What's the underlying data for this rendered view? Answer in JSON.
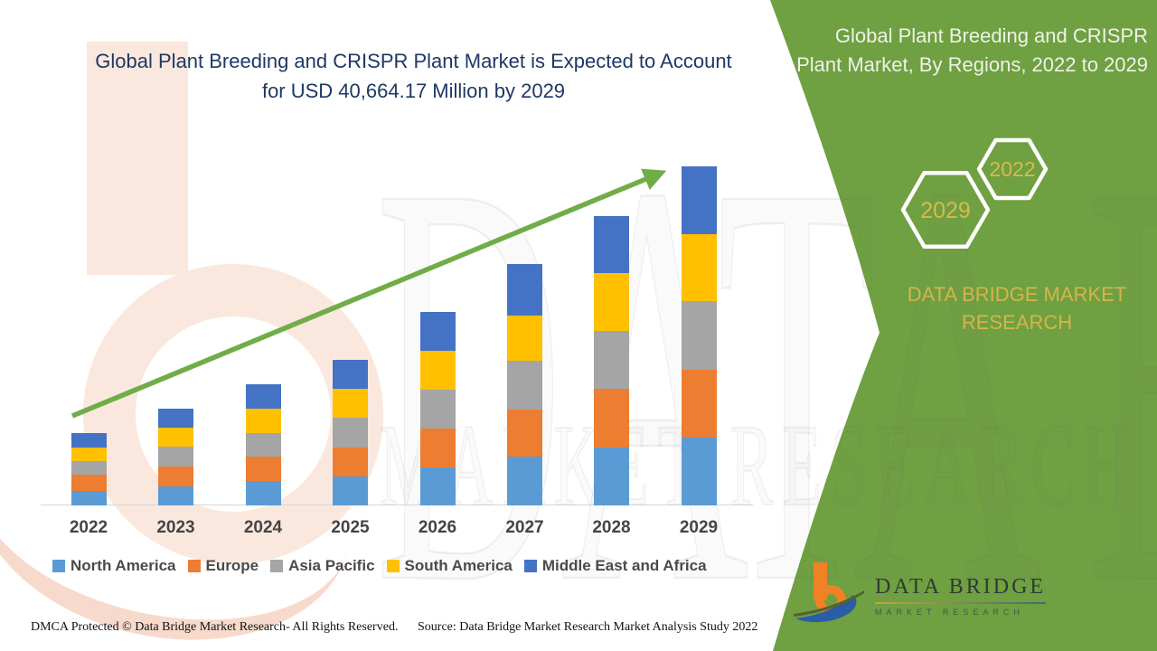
{
  "header": {
    "title_line1": "Global Plant Breeding and CRISPR Plant Market is Expected to Account",
    "title_line2": "for USD 40,664.17 Million by 2029"
  },
  "side_panel": {
    "title": "Global Plant Breeding and CRISPR Plant Market, By Regions, 2022 to 2029",
    "hexagons": {
      "front_label": "2029",
      "back_label": "2022"
    },
    "brand_line1": "DATA BRIDGE MARKET",
    "brand_line2": "RESEARCH",
    "logo": {
      "name": "DATA BRIDGE",
      "subtext": "MARKET RESEARCH"
    },
    "colors": {
      "panel_green": "#6FA041",
      "gold_text": "#D4B54B"
    }
  },
  "watermark": {
    "line1": "DATA BRIDGE",
    "line2": "MARKET RESEARCH"
  },
  "chart_data": {
    "type": "bar",
    "stacked": true,
    "title": "Global Plant Breeding and CRISPR Plant Market is Expected to Account for USD 40,664.17 Million by 2029",
    "unit": "USD Million",
    "categories": [
      "2022",
      "2023",
      "2024",
      "2025",
      "2026",
      "2027",
      "2028",
      "2029"
    ],
    "series": [
      {
        "name": "North America",
        "color": "#5B9BD5",
        "values": [
          1740,
          2330,
          2900,
          3490,
          4590,
          5850,
          6940,
          8130
        ]
      },
      {
        "name": "Europe",
        "color": "#ED7D31",
        "values": [
          1980,
          2330,
          2910,
          3490,
          4630,
          5600,
          7050,
          8130
        ]
      },
      {
        "name": "Asia Pacific",
        "color": "#A5A5A5",
        "values": [
          1630,
          2340,
          2910,
          3490,
          4690,
          5900,
          6970,
          8240
        ]
      },
      {
        "name": "South America",
        "color": "#FFC000",
        "values": [
          1630,
          2300,
          2900,
          3490,
          4630,
          5420,
          6940,
          8025
        ]
      },
      {
        "name": "Middle East and Africa",
        "color": "#4472C4",
        "values": [
          1690,
          2300,
          2905,
          3490,
          4690,
          6210,
          6800,
          8139.17
        ]
      }
    ],
    "estimated_totals": [
      8670,
      11600,
      14525,
      17450,
      23230,
      28980,
      34700,
      40664.17
    ],
    "ylim": [
      0,
      40664.17
    ],
    "xlabel": "",
    "ylabel": "",
    "gridlines": false,
    "legend_position": "bottom",
    "annotations": [
      "green upward growth trend arrow from 2022 bar to 2029 bar"
    ],
    "trend_arrow_color": "#70AD47"
  },
  "footer": {
    "left": "DMCA Protected © Data Bridge Market Research- All Rights Reserved.",
    "right": "Source: Data Bridge Market Research Market Analysis Study 2022"
  }
}
